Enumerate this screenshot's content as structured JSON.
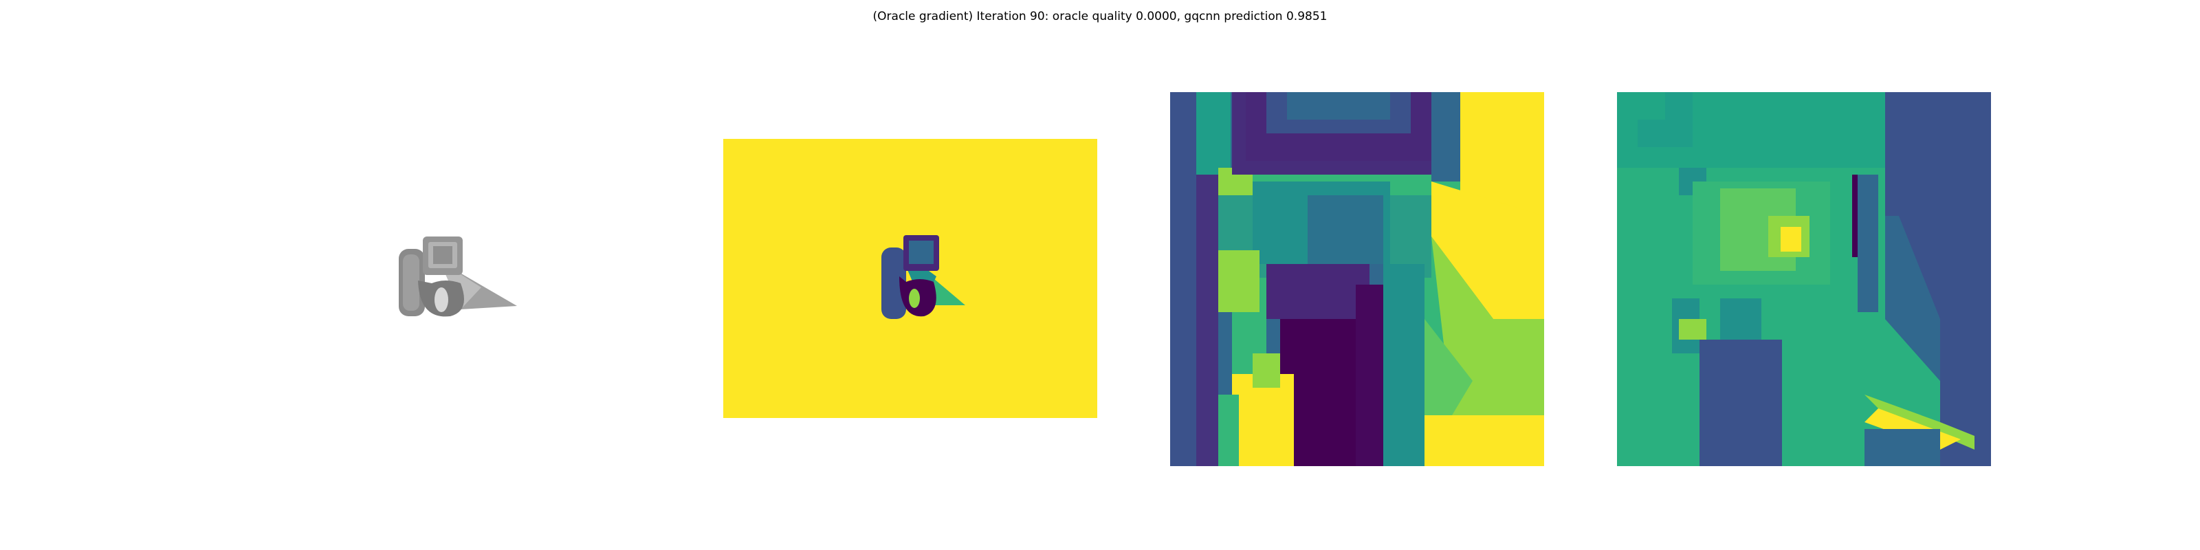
{
  "figure": {
    "title": "(Oracle gradient) Iteration 90: oracle quality 0.0000, gqcnn prediction 0.9851"
  },
  "panels": [
    {
      "name": "rendered-object",
      "kind": "grayscale render"
    },
    {
      "name": "depth-image",
      "kind": "viridis depth map"
    },
    {
      "name": "depth-crop",
      "kind": "viridis depth crop"
    },
    {
      "name": "oracle-gradient",
      "kind": "viridis gradient map"
    }
  ],
  "colors": {
    "viridis_dark": "#440154",
    "viridis_indigo": "#3b528b",
    "viridis_blue": "#31688e",
    "viridis_teal": "#21918c",
    "viridis_green": "#35b779",
    "viridis_lime": "#90d743",
    "viridis_yellow": "#fde725",
    "object_gray": "#8c8c8c"
  }
}
